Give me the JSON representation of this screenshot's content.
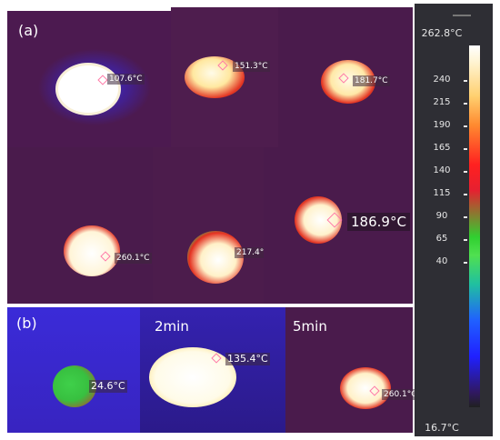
{
  "panel_labels": {
    "a": "(a)",
    "b": "(b)"
  },
  "time_labels": {
    "t2": "2min",
    "t5": "5min"
  },
  "readings": [
    "107.6°C",
    "151.3°C",
    "181.7°C",
    "260.1°C",
    "217.4°",
    "186.9°C",
    "24.6°C",
    "135.4°C",
    "260.1°C"
  ],
  "colorbar": {
    "max_label": "262.8°C",
    "min_label": "16.7°C",
    "ticks": [
      "240",
      "215",
      "190",
      "165",
      "140",
      "115",
      "90",
      "65",
      "40"
    ],
    "colors": {
      "hot": "#ffffff",
      "high": "#ff2020",
      "mid": "#30d030",
      "low": "#2020ff",
      "cold": "#301040"
    }
  }
}
